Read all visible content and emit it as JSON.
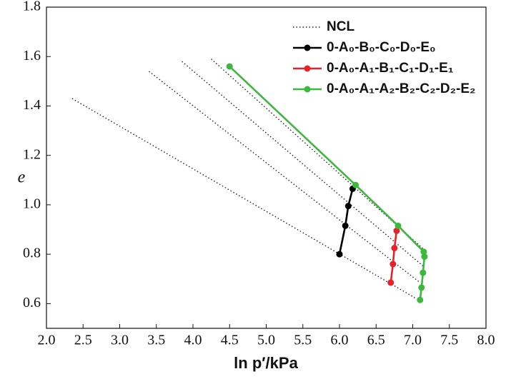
{
  "chart_data": {
    "type": "line",
    "xlabel": "ln p′/kPa",
    "ylabel": "e",
    "xlim": [
      2,
      8
    ],
    "xticks": [
      {
        "value": 2,
        "label": "2.0"
      },
      2.5,
      {
        "value": 3,
        "label": "3.0"
      },
      3.5,
      {
        "value": 4,
        "label": "4.0"
      },
      4.5,
      {
        "value": 5,
        "label": "5.0"
      },
      5.5,
      {
        "value": 6,
        "label": "6.0"
      },
      6.5,
      {
        "value": 7,
        "label": "7.0"
      },
      7.5,
      {
        "value": 8,
        "label": "8.0"
      }
    ],
    "ylim": [
      0.5,
      1.8
    ],
    "yticks": [
      0.6,
      0.8,
      {
        "value": 1,
        "label": "1.0"
      },
      1.2,
      1.4,
      1.6,
      1.8
    ],
    "legend": "upper right",
    "series": [
      {
        "name": "NCL",
        "color": "#222222",
        "style": "dotted",
        "markers": false,
        "x": [
          2.35,
          7.05,
          null,
          3.4,
          7.1,
          null,
          3.85,
          7.15,
          null,
          4.25,
          7.15
        ],
        "values": [
          1.43,
          0.62,
          null,
          1.54,
          0.685,
          null,
          1.58,
          0.75,
          null,
          1.59,
          0.82
        ]
      },
      {
        "name": "0-A₀-B₀-C₀-D₀-E₀",
        "color": "#000000",
        "style": "solid",
        "markers": true,
        "x": [
          6.0,
          6.08,
          6.12,
          6.18
        ],
        "values": [
          0.8,
          0.915,
          0.995,
          1.065
        ]
      },
      {
        "name": "0-A₀-A₁-B₁-C₁-D₁-E₁",
        "color": "#e8202a",
        "style": "solid",
        "markers": true,
        "x": [
          6.7,
          6.73,
          6.75,
          6.78
        ],
        "values": [
          0.685,
          0.76,
          0.825,
          0.895
        ]
      },
      {
        "name": "0-A₀-A₁-A₂-B₂-C₂-D₂-E₂",
        "color": "#3cb83c",
        "style": "solid",
        "markers": true,
        "x": [
          4.5,
          6.22,
          6.8,
          7.15,
          7.16,
          7.14,
          7.12,
          7.1
        ],
        "values": [
          1.56,
          1.08,
          0.915,
          0.81,
          0.79,
          0.725,
          0.665,
          0.615
        ]
      }
    ]
  }
}
